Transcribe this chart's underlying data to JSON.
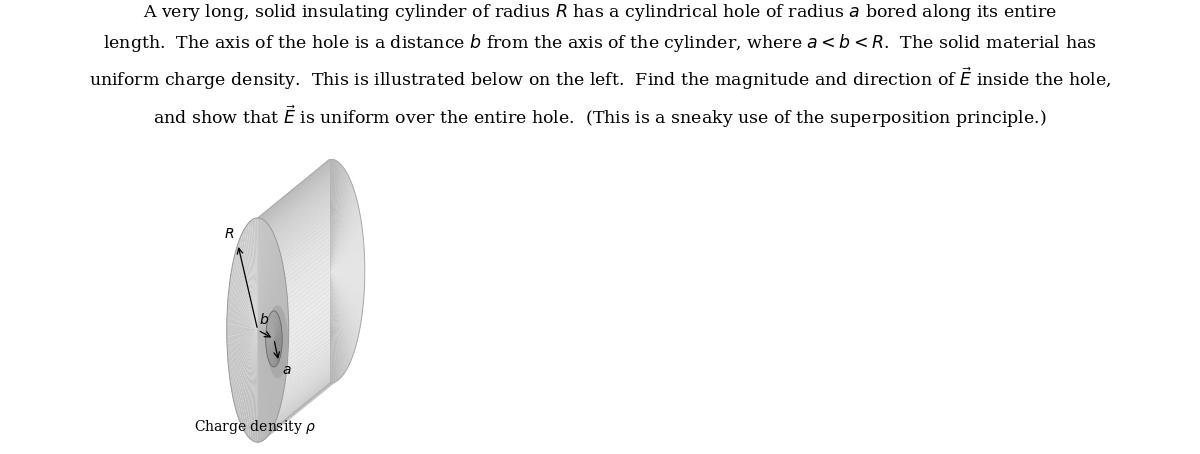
{
  "bg_color": "#ffffff",
  "text_fontsize": 12.5,
  "label_fontsize": 10,
  "fig_width": 12.0,
  "fig_height": 4.54,
  "paragraph_line1": "A very long, solid insulating cylinder of radius $R$ has a cylindrical hole of radius $a$ bored along its entire",
  "paragraph_line2": "length.  The axis of the hole is a distance $b$ from the axis of the cylinder, where $a < b < R$.  The solid material has",
  "paragraph_line3": "uniform charge density.  This is illustrated below on the left.  Find the magnitude and direction of $\\vec{E}$ inside the hole,",
  "paragraph_line4": "and show that $\\vec{E}$ is uniform over the entire hole.  (This is a sneaky use of the superposition principle.)",
  "label_charge": "Charge density $\\rho$",
  "label_R": "$R$",
  "label_b": "$b$",
  "label_a": "$a$",
  "fcx": 0.255,
  "fcy": 0.42,
  "frx": 0.105,
  "fry": 0.38,
  "bcx": 0.5,
  "bcy": 0.62,
  "brx": 0.118,
  "bry": 0.38,
  "hcx_off": 0.055,
  "hcy_off": -0.03,
  "hrx": 0.028,
  "hry": 0.095
}
